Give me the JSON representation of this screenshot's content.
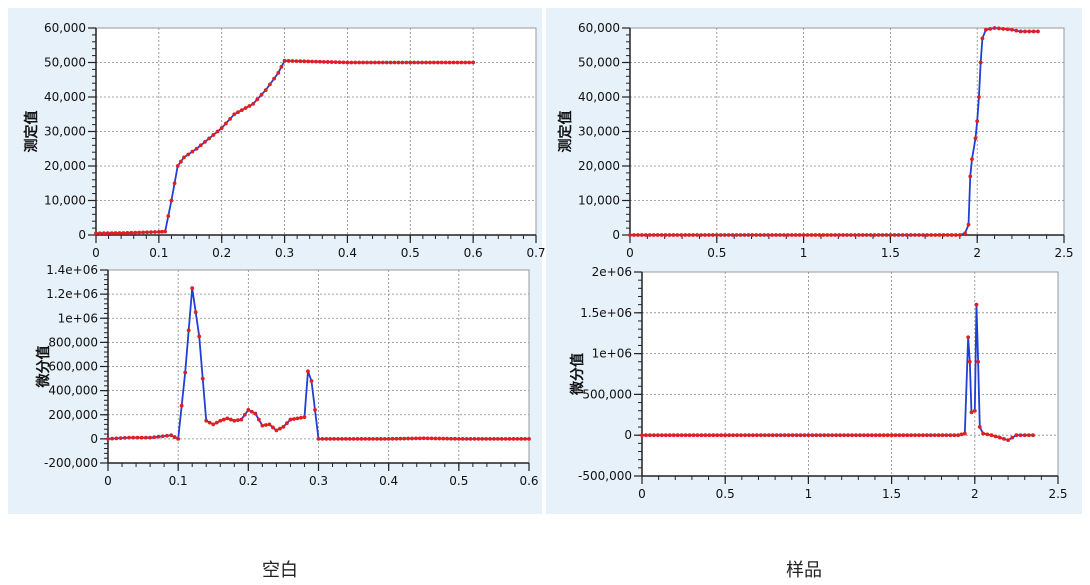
{
  "captions": {
    "blank": "空白",
    "sample": "样品"
  },
  "colors": {
    "line": "#1f3fd6",
    "marker": "#e02020",
    "plot_bg": "#ffffff",
    "panel_bg": "#e7f1fa",
    "grid": "#888888"
  },
  "chart_data": [
    {
      "id": "blank-measured",
      "type": "line",
      "ylabel": "测定值",
      "xlim": [
        0,
        0.7
      ],
      "ylim": [
        0,
        60000
      ],
      "xticks": [
        0,
        0.1,
        0.2,
        0.3,
        0.4,
        0.5,
        0.6,
        0.7
      ],
      "xtick_labels": [
        "0",
        "0.1",
        "0.2",
        "0.3",
        "0.4",
        "0.5",
        "0.6",
        "0.7"
      ],
      "yticks": [
        0,
        10000,
        20000,
        30000,
        40000,
        50000,
        60000
      ],
      "ytick_labels": [
        "0",
        "10,000",
        "20,000",
        "30,000",
        "40,000",
        "50,000",
        "60,000"
      ],
      "grid": true,
      "series": [
        {
          "points": [
            [
              0,
              500
            ],
            [
              0.05,
              600
            ],
            [
              0.1,
              900
            ],
            [
              0.11,
              1000
            ],
            [
              0.12,
              10000
            ],
            [
              0.13,
              20000
            ],
            [
              0.14,
              22500
            ],
            [
              0.16,
              25000
            ],
            [
              0.18,
              28000
            ],
            [
              0.2,
              31000
            ],
            [
              0.22,
              35000
            ],
            [
              0.25,
              38000
            ],
            [
              0.27,
              42000
            ],
            [
              0.29,
              47000
            ],
            [
              0.3,
              50500
            ],
            [
              0.4,
              50000
            ],
            [
              0.5,
              50000
            ],
            [
              0.6,
              50000
            ]
          ]
        }
      ]
    },
    {
      "id": "blank-derivative",
      "type": "line",
      "ylabel": "微分值",
      "xlim": [
        0,
        0.6
      ],
      "ylim": [
        -200000,
        1400000
      ],
      "xticks": [
        0,
        0.1,
        0.2,
        0.3,
        0.4,
        0.5,
        0.6
      ],
      "xtick_labels": [
        "0",
        "0.1",
        "0.2",
        "0.3",
        "0.4",
        "0.5",
        "0.6"
      ],
      "yticks": [
        -200000,
        0,
        200000,
        400000,
        600000,
        800000,
        1000000,
        1200000,
        1400000
      ],
      "ytick_labels": [
        "-200,000",
        "0",
        "200,000",
        "400,000",
        "600,000",
        "800,000",
        "1e+06",
        "1.2e+06",
        "1.4e+06"
      ],
      "grid": true,
      "series": [
        {
          "points": [
            [
              0,
              0
            ],
            [
              0.03,
              10000
            ],
            [
              0.06,
              10000
            ],
            [
              0.09,
              30000
            ],
            [
              0.1,
              0
            ],
            [
              0.11,
              550000
            ],
            [
              0.12,
              1250000
            ],
            [
              0.13,
              850000
            ],
            [
              0.14,
              150000
            ],
            [
              0.15,
              120000
            ],
            [
              0.16,
              150000
            ],
            [
              0.17,
              170000
            ],
            [
              0.18,
              150000
            ],
            [
              0.19,
              160000
            ],
            [
              0.2,
              240000
            ],
            [
              0.21,
              210000
            ],
            [
              0.22,
              110000
            ],
            [
              0.23,
              120000
            ],
            [
              0.24,
              70000
            ],
            [
              0.25,
              100000
            ],
            [
              0.26,
              160000
            ],
            [
              0.27,
              170000
            ],
            [
              0.28,
              180000
            ],
            [
              0.285,
              560000
            ],
            [
              0.29,
              480000
            ],
            [
              0.3,
              0
            ],
            [
              0.35,
              0
            ],
            [
              0.4,
              0
            ],
            [
              0.45,
              5000
            ],
            [
              0.5,
              0
            ],
            [
              0.55,
              0
            ],
            [
              0.6,
              0
            ]
          ]
        }
      ]
    },
    {
      "id": "sample-measured",
      "type": "line",
      "ylabel": "测定值",
      "xlim": [
        0,
        2.5
      ],
      "ylim": [
        0,
        60000
      ],
      "xticks": [
        0,
        0.5,
        1,
        1.5,
        2,
        2.5
      ],
      "xtick_labels": [
        "0",
        "0.5",
        "1",
        "1.5",
        "2",
        "2.5"
      ],
      "yticks": [
        0,
        10000,
        20000,
        30000,
        40000,
        50000,
        60000
      ],
      "ytick_labels": [
        "0",
        "10,000",
        "20,000",
        "30,000",
        "40,000",
        "50,000",
        "60,000"
      ],
      "grid": true,
      "series": [
        {
          "points": [
            [
              0,
              0
            ],
            [
              0.5,
              0
            ],
            [
              1,
              0
            ],
            [
              1.5,
              0
            ],
            [
              1.9,
              0
            ],
            [
              1.93,
              500
            ],
            [
              1.95,
              3000
            ],
            [
              1.96,
              17000
            ],
            [
              1.97,
              22000
            ],
            [
              1.99,
              28000
            ],
            [
              2.0,
              33000
            ],
            [
              2.01,
              40000
            ],
            [
              2.02,
              50000
            ],
            [
              2.03,
              57000
            ],
            [
              2.05,
              59500
            ],
            [
              2.1,
              60000
            ],
            [
              2.2,
              59500
            ],
            [
              2.25,
              59000
            ],
            [
              2.35,
              59000
            ]
          ]
        }
      ]
    },
    {
      "id": "sample-derivative",
      "type": "line",
      "ylabel": "微分值",
      "xlim": [
        0,
        2.5
      ],
      "ylim": [
        -500000,
        2000000
      ],
      "xticks": [
        0,
        0.5,
        1,
        1.5,
        2,
        2.5
      ],
      "xtick_labels": [
        "0",
        "0.5",
        "1",
        "1.5",
        "2",
        "2.5"
      ],
      "yticks": [
        -500000,
        0,
        500000,
        1000000,
        1500000,
        2000000
      ],
      "ytick_labels": [
        "-500,000",
        "0",
        "500,000",
        "1e+06",
        "1.5e+06",
        "2e+06"
      ],
      "grid": true,
      "series": [
        {
          "points": [
            [
              0,
              0
            ],
            [
              0.5,
              0
            ],
            [
              1,
              0
            ],
            [
              1.5,
              0
            ],
            [
              1.9,
              0
            ],
            [
              1.94,
              20000
            ],
            [
              1.96,
              1200000
            ],
            [
              1.97,
              900000
            ],
            [
              1.98,
              280000
            ],
            [
              2.0,
              300000
            ],
            [
              2.01,
              1600000
            ],
            [
              2.02,
              900000
            ],
            [
              2.03,
              100000
            ],
            [
              2.05,
              20000
            ],
            [
              2.1,
              0
            ],
            [
              2.2,
              -60000
            ],
            [
              2.25,
              0
            ],
            [
              2.35,
              0
            ]
          ]
        }
      ]
    }
  ]
}
